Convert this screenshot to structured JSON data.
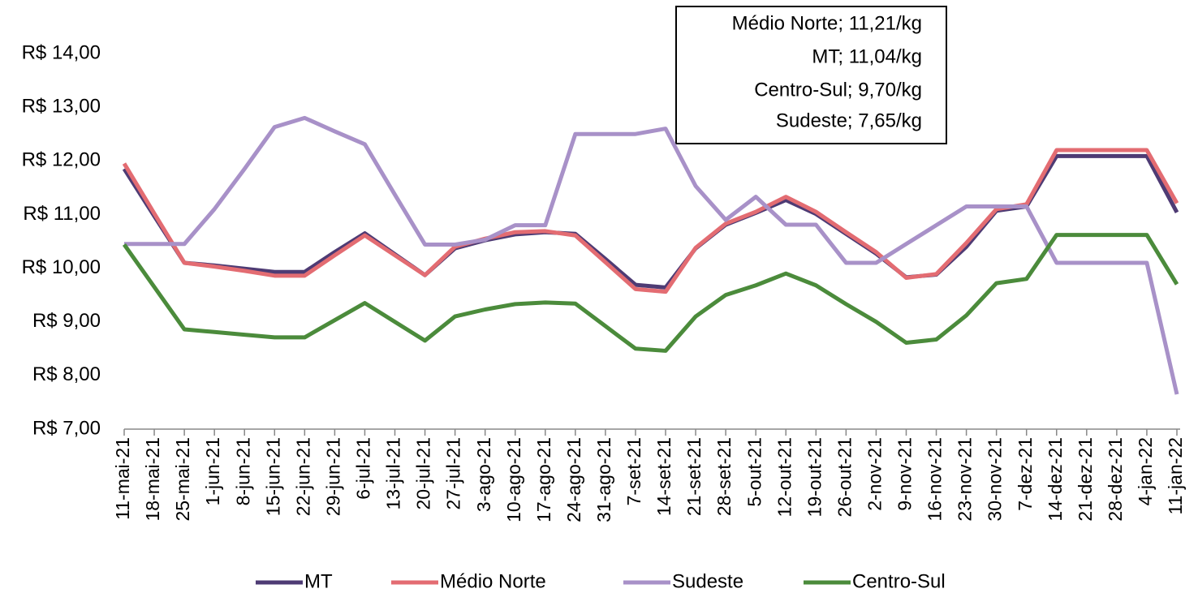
{
  "chart_data": {
    "type": "line",
    "annotations": [
      "Médio Norte; 11,21/kg",
      "MT; 11,04/kg",
      "Centro-Sul; 9,70/kg",
      "Sudeste; 7,65/kg"
    ],
    "categories": [
      "11-mai-21",
      "18-mai-21",
      "25-mai-21",
      "1-jun-21",
      "8-jun-21",
      "15-jun-21",
      "22-jun-21",
      "29-jun-21",
      "6-jul-21",
      "13-jul-21",
      "20-jul-21",
      "27-jul-21",
      "3-ago-21",
      "10-ago-21",
      "17-ago-21",
      "24-ago-21",
      "31-ago-21",
      "7-set-21",
      "14-set-21",
      "21-set-21",
      "28-set-21",
      "5-out-21",
      "12-out-21",
      "19-out-21",
      "26-out-21",
      "2-nov-21",
      "9-nov-21",
      "16-nov-21",
      "23-nov-21",
      "30-nov-21",
      "7-dez-21",
      "14-dez-21",
      "21-dez-21",
      "28-dez-21",
      "4-jan-22",
      "11-jan-22"
    ],
    "series": [
      {
        "name": "MT",
        "color": "#4e3b74",
        "values": [
          11.85,
          10.97,
          10.1,
          10.05,
          9.99,
          9.93,
          9.93,
          10.3,
          10.65,
          10.26,
          9.87,
          10.37,
          10.52,
          10.63,
          10.67,
          10.64,
          10.17,
          9.69,
          9.64,
          10.37,
          10.81,
          11.03,
          11.27,
          11.01,
          10.64,
          10.27,
          9.83,
          9.88,
          10.4,
          11.07,
          11.15,
          12.09,
          12.09,
          12.09,
          12.09,
          11.04
        ]
      },
      {
        "name": "Médio Norte",
        "color": "#e36c72",
        "values": [
          11.95,
          11.02,
          10.1,
          10.03,
          9.95,
          9.86,
          9.86,
          10.24,
          10.61,
          10.24,
          9.87,
          10.4,
          10.55,
          10.67,
          10.69,
          10.61,
          10.11,
          9.61,
          9.56,
          10.38,
          10.83,
          11.05,
          11.33,
          11.05,
          10.67,
          10.3,
          9.82,
          9.89,
          10.47,
          11.1,
          11.19,
          12.2,
          12.2,
          12.2,
          12.2,
          11.21
        ]
      },
      {
        "name": "Sudeste",
        "color": "#a891c8",
        "values": [
          10.45,
          10.45,
          10.45,
          11.1,
          11.85,
          12.63,
          12.8,
          12.55,
          12.31,
          11.37,
          10.44,
          10.44,
          10.53,
          10.8,
          10.8,
          12.5,
          12.5,
          12.5,
          12.6,
          11.53,
          10.9,
          11.33,
          10.81,
          10.81,
          10.1,
          10.1,
          10.45,
          10.8,
          11.15,
          11.15,
          11.15,
          10.1,
          10.1,
          10.1,
          10.1,
          7.65
        ]
      },
      {
        "name": "Centro-Sul",
        "color": "#4b8b3b",
        "values": [
          10.44,
          9.65,
          8.86,
          8.81,
          8.76,
          8.71,
          8.71,
          9.03,
          9.35,
          9.0,
          8.65,
          9.1,
          9.23,
          9.33,
          9.36,
          9.34,
          8.92,
          8.5,
          8.46,
          9.1,
          9.5,
          9.68,
          9.9,
          9.68,
          9.33,
          9.0,
          8.61,
          8.67,
          9.12,
          9.72,
          9.8,
          10.62,
          10.62,
          10.62,
          10.62,
          9.7
        ]
      }
    ],
    "ylim": [
      7,
      14
    ],
    "yticks": [
      {
        "value": 7,
        "label": "R$ 7,00"
      },
      {
        "value": 8,
        "label": "R$ 8,00"
      },
      {
        "value": 9,
        "label": "R$ 9,00"
      },
      {
        "value": 10,
        "label": "R$ 10,00"
      },
      {
        "value": 11,
        "label": "R$ 11,00"
      },
      {
        "value": 12,
        "label": "R$ 12,00"
      },
      {
        "value": 13,
        "label": "R$ 13,00"
      },
      {
        "value": 14,
        "label": "R$ 14,00"
      }
    ],
    "grid": false,
    "legend": "bottom"
  }
}
